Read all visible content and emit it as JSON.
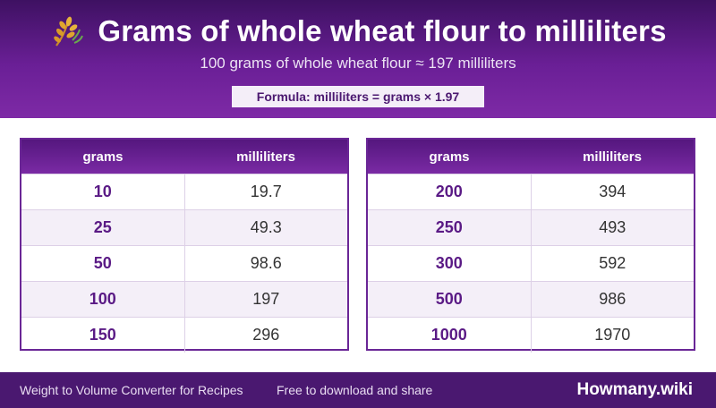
{
  "header": {
    "title": "Grams of whole wheat flour to milliliters",
    "subtitle": "100 grams of whole wheat flour ≈ 197 milliliters",
    "formula": "Formula: milliliters = grams × 1.97",
    "icon": "wheat-icon"
  },
  "tables": [
    {
      "col_grams": "grams",
      "col_ml": "milliliters",
      "rows": [
        {
          "grams": "10",
          "ml": "19.7"
        },
        {
          "grams": "25",
          "ml": "49.3"
        },
        {
          "grams": "50",
          "ml": "98.6"
        },
        {
          "grams": "100",
          "ml": "197"
        },
        {
          "grams": "150",
          "ml": "296"
        }
      ]
    },
    {
      "col_grams": "grams",
      "col_ml": "milliliters",
      "rows": [
        {
          "grams": "200",
          "ml": "394"
        },
        {
          "grams": "250",
          "ml": "493"
        },
        {
          "grams": "300",
          "ml": "592"
        },
        {
          "grams": "500",
          "ml": "986"
        },
        {
          "grams": "1000",
          "ml": "1970"
        }
      ]
    }
  ],
  "footer": {
    "left": "Weight to Volume Converter for Recipes",
    "middle": "Free to download and share",
    "brand": "Howmany.wiki"
  },
  "colors": {
    "header_dark": "#3e1162",
    "header_light": "#7e2aa6",
    "accent_text": "#5a1a85",
    "footer_bg": "#4a1870"
  }
}
